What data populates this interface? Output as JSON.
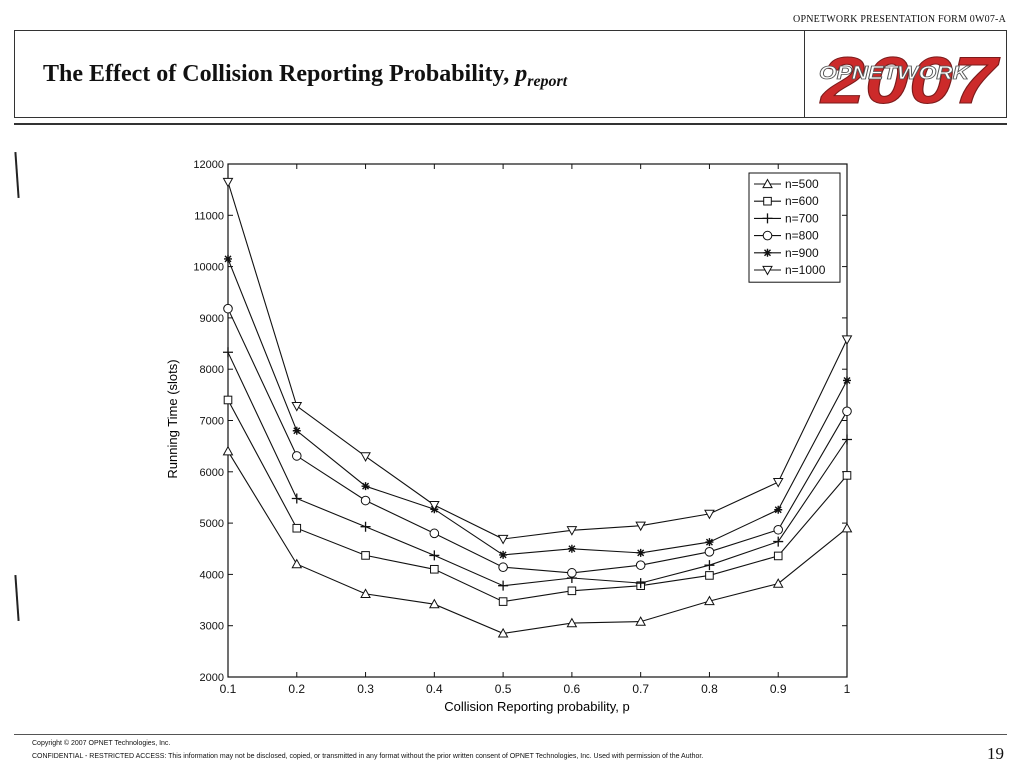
{
  "header": {
    "form_label": "OPNETWORK PRESENTATION FORM 0W07-A",
    "title_main": "The Effect of  Collision Reporting Probability, ",
    "title_var": "p",
    "title_sub": "report",
    "logo_word": "OPNETWORK",
    "logo_year": "2007"
  },
  "footer": {
    "copyright": "Copyright © 2007 OPNET Technologies, Inc.",
    "confidential": "CONFIDENTIAL - RESTRICTED ACCESS: This information may not be disclosed, copied, or transmitted in any format without the prior written consent of OPNET Technologies, Inc.   Used with permission of the Author.",
    "page_number": "19"
  },
  "colors": {
    "ink": "#111111",
    "logo_red": "#cc2a2a",
    "logo_grey": "#b0b0b0"
  },
  "chart_data": {
    "type": "line",
    "title": "",
    "xlabel": "Collision Reporting probability, p",
    "ylabel": "Running Time (slots)",
    "x": [
      0.1,
      0.2,
      0.3,
      0.4,
      0.5,
      0.6,
      0.7,
      0.8,
      0.9,
      1
    ],
    "x_tick_labels": [
      "0.1",
      "0.2",
      "0.3",
      "0.4",
      "0.5",
      "0.6",
      "0.7",
      "0.8",
      "0.9",
      "1"
    ],
    "xlim": [
      0.1,
      1
    ],
    "ylim": [
      2000,
      12000
    ],
    "y_ticks": [
      2000,
      3000,
      4000,
      5000,
      6000,
      7000,
      8000,
      9000,
      10000,
      11000,
      12000
    ],
    "grid": false,
    "legend_position": "top-right",
    "series": [
      {
        "name": "n=500",
        "marker": "triangle-up",
        "values": [
          6400,
          4200,
          3620,
          3420,
          2850,
          3050,
          3080,
          3480,
          3820,
          4900
        ]
      },
      {
        "name": "n=600",
        "marker": "square",
        "values": [
          7400,
          4900,
          4370,
          4100,
          3470,
          3680,
          3780,
          3980,
          4360,
          5930
        ]
      },
      {
        "name": "n=700",
        "marker": "plus",
        "values": [
          8330,
          5480,
          4930,
          4370,
          3780,
          3930,
          3830,
          4180,
          4640,
          6630
        ]
      },
      {
        "name": "n=800",
        "marker": "circle",
        "values": [
          9180,
          6310,
          5440,
          4800,
          4140,
          4030,
          4180,
          4440,
          4870,
          7180
        ]
      },
      {
        "name": "n=900",
        "marker": "star",
        "values": [
          10150,
          6800,
          5720,
          5270,
          4380,
          4500,
          4420,
          4630,
          5260,
          7780
        ]
      },
      {
        "name": "n=1000",
        "marker": "triangle-down",
        "values": [
          11650,
          7280,
          6300,
          5350,
          4690,
          4860,
          4950,
          5180,
          5800,
          8580
        ]
      }
    ]
  }
}
